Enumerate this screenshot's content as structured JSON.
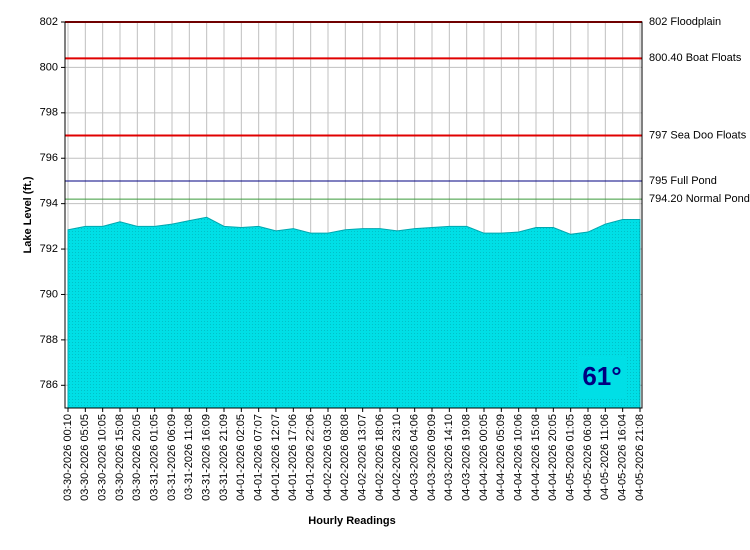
{
  "chart_data": {
    "type": "area",
    "x_label": "Hourly Readings",
    "y_label": "Lake Level (ft.)",
    "annotation": "61°",
    "categories": [
      "03-30-2026 00:10",
      "03-30-2026 05:05",
      "03-30-2026 10:05",
      "03-30-2026 15:08",
      "03-30-2026 20:05",
      "03-31-2026 01:05",
      "03-31-2026 06:09",
      "03-31-2026 11:08",
      "03-31-2026 16:09",
      "03-31-2026 21:09",
      "04-01-2026 02:05",
      "04-01-2026 07:07",
      "04-01-2026 12:07",
      "04-01-2026 17:06",
      "04-01-2026 22:06",
      "04-02-2026 03:05",
      "04-02-2026 08:08",
      "04-02-2026 13:07",
      "04-02-2026 18:06",
      "04-02-2026 23:10",
      "04-03-2026 04:06",
      "04-03-2026 09:09",
      "04-03-2026 14:10",
      "04-03-2026 19:08",
      "04-04-2026 00:05",
      "04-04-2026 05:09",
      "04-04-2026 10:06",
      "04-04-2026 15:08",
      "04-04-2026 20:05",
      "04-05-2026 01:05",
      "04-05-2026 06:08",
      "04-05-2026 11:06",
      "04-05-2026 16:04",
      "04-05-2026 21:08"
    ],
    "values": [
      792.85,
      793.0,
      793.0,
      793.2,
      793.0,
      793.0,
      793.1,
      793.25,
      793.4,
      793.0,
      792.95,
      793.0,
      792.8,
      792.9,
      792.7,
      792.7,
      792.85,
      792.9,
      792.9,
      792.8,
      792.9,
      792.95,
      793.0,
      793.0,
      792.7,
      792.7,
      792.75,
      792.95,
      792.95,
      792.65,
      792.75,
      793.1,
      793.3,
      793.3
    ],
    "color": "#00dfe6",
    "ylim": [
      785,
      802
    ],
    "yticks": [
      786,
      788,
      790,
      792,
      794,
      796,
      798,
      800,
      802
    ],
    "grid": true,
    "reference_lines": [
      {
        "value": 802,
        "label": "802 Floodplain",
        "color": "#e00000"
      },
      {
        "value": 800.4,
        "label": "800.40 Boat Floats",
        "color": "#e00000"
      },
      {
        "value": 797,
        "label": "797 Sea Doo Floats",
        "color": "#e00000"
      },
      {
        "value": 795,
        "label": "795 Full Pond",
        "color": "#000080"
      },
      {
        "value": 794.2,
        "label": "794.20 Normal Pond",
        "color": "#3a9a3a"
      }
    ]
  }
}
